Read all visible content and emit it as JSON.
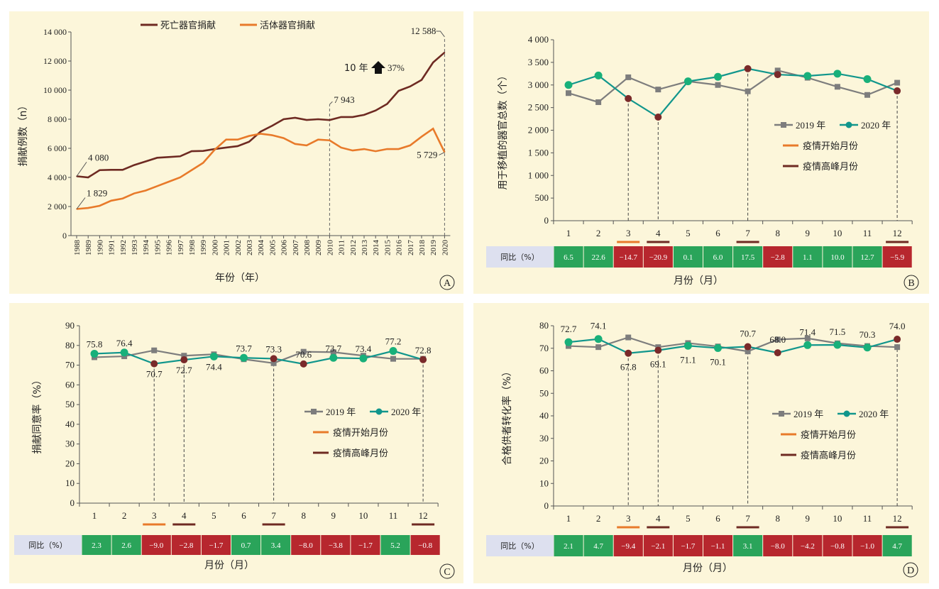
{
  "colors": {
    "panel_bg": "#fcf6da",
    "deceased": "#6e2a22",
    "living": "#e87a2a",
    "y2019": "#7d7d7d",
    "y2020": "#11968c",
    "marker2020": "#18b07a",
    "marker_dark": "#7a2a2a",
    "cell_pos": "#2aa45a",
    "cell_neg": "#b7272e",
    "cell_label_bg": "#dde0ef"
  },
  "common": {
    "legend_2019": "2019 年",
    "legend_2020": "2020 年",
    "legend_onset": "疫情开始月份",
    "legend_peak": "疫情高峰月份",
    "yoy_label": "同比（%）",
    "month_axis_label": "月份（月）",
    "months": [
      "1",
      "2",
      "3",
      "4",
      "5",
      "6",
      "7",
      "8",
      "9",
      "10",
      "11",
      "12"
    ]
  },
  "chart_data": [
    {
      "panel": "A",
      "type": "line",
      "x_label": "年份（年）",
      "y_label": "捐献例数（n）",
      "ylim": [
        0,
        14000
      ],
      "y_ticks": [
        "0",
        "2 000",
        "4 000",
        "6 000",
        "8 000",
        "10 000",
        "12 000",
        "14 000"
      ],
      "x": [
        "1988",
        "1989",
        "1990",
        "1991",
        "1992",
        "1993",
        "1994",
        "1995",
        "1996",
        "1997",
        "1998",
        "1999",
        "2000",
        "2001",
        "2002",
        "2003",
        "2004",
        "2005",
        "2006",
        "2007",
        "2008",
        "2009",
        "2010",
        "2011",
        "2012",
        "2013",
        "2014",
        "2015",
        "2016",
        "2017",
        "2018",
        "2019",
        "2020"
      ],
      "series": [
        {
          "name": "死亡器官捐献",
          "values": [
            4080,
            4000,
            4500,
            4520,
            4520,
            4850,
            5100,
            5350,
            5400,
            5450,
            5800,
            5820,
            5950,
            6050,
            6150,
            6450,
            7150,
            7550,
            8000,
            8100,
            7950,
            8000,
            7943,
            8150,
            8150,
            8300,
            8600,
            9050,
            9950,
            10250,
            10700,
            11900,
            12588
          ]
        },
        {
          "name": "活体器官捐献",
          "values": [
            1829,
            1900,
            2050,
            2400,
            2550,
            2900,
            3100,
            3400,
            3700,
            4000,
            4500,
            5000,
            5900,
            6600,
            6600,
            6850,
            7000,
            6900,
            6700,
            6300,
            6200,
            6600,
            6550,
            6050,
            5850,
            5950,
            5800,
            5950,
            5950,
            6200,
            6800,
            7350,
            5729
          ]
        }
      ],
      "annotations": [
        {
          "text": "4 080",
          "year": "1988",
          "value": 4080
        },
        {
          "text": "1 829",
          "year": "1988",
          "value": 1829
        },
        {
          "text": "7 943",
          "year": "2010",
          "value": 7943
        },
        {
          "text": "12 588",
          "year": "2020",
          "value": 12588
        },
        {
          "text": "5 729",
          "year": "2020",
          "value": 5729
        },
        {
          "text": "10 年",
          "arrow": "up",
          "pct": "37%"
        }
      ],
      "panel_letter": "A"
    },
    {
      "panel": "B",
      "type": "line",
      "y_label": "用于移植的器官总数（个）",
      "ylim": [
        0,
        4000
      ],
      "y_ticks": [
        "0",
        "500",
        "1 000",
        "1 500",
        "2 000",
        "2 500",
        "3 000",
        "3 500",
        "4 000"
      ],
      "series": [
        {
          "name": "2019 年",
          "values": [
            2820,
            2620,
            3170,
            2900,
            3080,
            3000,
            2860,
            3320,
            3160,
            2960,
            2780,
            3050
          ]
        },
        {
          "name": "2020 年",
          "values": [
            3000,
            3210,
            2700,
            2290,
            3080,
            3180,
            3360,
            3230,
            3200,
            3250,
            3130,
            2870
          ]
        }
      ],
      "onset_months": [
        3
      ],
      "peak_months": [
        4,
        7,
        12
      ],
      "yoy": [
        "6.5",
        "22.6",
        "−14.7",
        "−20.9",
        "0.1",
        "6.0",
        "17.5",
        "−2.8",
        "1.1",
        "10.0",
        "12.7",
        "−5.9"
      ],
      "panel_letter": "B"
    },
    {
      "panel": "C",
      "type": "line",
      "y_label": "捐献同意率（%）",
      "ylim": [
        0,
        90
      ],
      "y_ticks": [
        "0",
        "10",
        "20",
        "30",
        "40",
        "50",
        "60",
        "70",
        "80",
        "90"
      ],
      "series": [
        {
          "name": "2019 年",
          "values": [
            74.0,
            74.5,
            77.5,
            74.8,
            75.5,
            73.0,
            71.0,
            76.8,
            76.6,
            74.8,
            73.2,
            73.2
          ]
        },
        {
          "name": "2020 年",
          "values": [
            75.8,
            76.4,
            70.7,
            72.7,
            74.4,
            73.7,
            73.3,
            70.6,
            73.7,
            73.4,
            77.2,
            72.8
          ]
        }
      ],
      "labels_above": [
        "75.8",
        "76.4",
        "",
        "",
        "",
        "73.7",
        "73.3",
        "70.6",
        "73.7",
        "73.4",
        "77.2",
        "72.8"
      ],
      "labels_below": [
        "",
        "",
        "70.7",
        "72.7",
        "74.4",
        "",
        "",
        "",
        "",
        "",
        "",
        ""
      ],
      "onset_months": [
        3
      ],
      "peak_months": [
        4,
        7,
        12
      ],
      "yoy": [
        "2.3",
        "2.6",
        "−9.0",
        "−2.8",
        "−1.7",
        "0.7",
        "3.4",
        "−8.0",
        "−3.8",
        "−1.7",
        "5.2",
        "−0.8"
      ],
      "panel_letter": "C"
    },
    {
      "panel": "D",
      "type": "line",
      "y_label": "合格供者转化率（%）",
      "ylim": [
        0,
        80
      ],
      "y_ticks": [
        "0",
        "10",
        "20",
        "30",
        "40",
        "50",
        "60",
        "70",
        "80"
      ],
      "series": [
        {
          "name": "2019 年",
          "values": [
            71.0,
            70.5,
            74.8,
            70.5,
            72.3,
            70.8,
            68.6,
            73.9,
            74.4,
            72.2,
            71.0,
            70.5
          ]
        },
        {
          "name": "2020 年",
          "values": [
            72.7,
            74.1,
            67.8,
            69.1,
            71.1,
            70.1,
            70.7,
            68.0,
            71.4,
            71.5,
            70.3,
            74.0
          ]
        }
      ],
      "labels_above": [
        "72.7",
        "74.1",
        "",
        "",
        "",
        "",
        "70.7",
        "68.0",
        "71.4",
        "71.5",
        "70.3",
        "74.0"
      ],
      "labels_below": [
        "",
        "",
        "67.8",
        "69.1",
        "71.1",
        "70.1",
        "",
        "",
        "",
        "",
        "",
        ""
      ],
      "onset_months": [
        3
      ],
      "peak_months": [
        4,
        7,
        12
      ],
      "yoy": [
        "2.1",
        "4.7",
        "−9.4",
        "−2.1",
        "−1.7",
        "−1.1",
        "3.1",
        "−8.0",
        "−4.2",
        "−0.8",
        "−1.0",
        "4.7"
      ],
      "panel_letter": "D"
    }
  ]
}
